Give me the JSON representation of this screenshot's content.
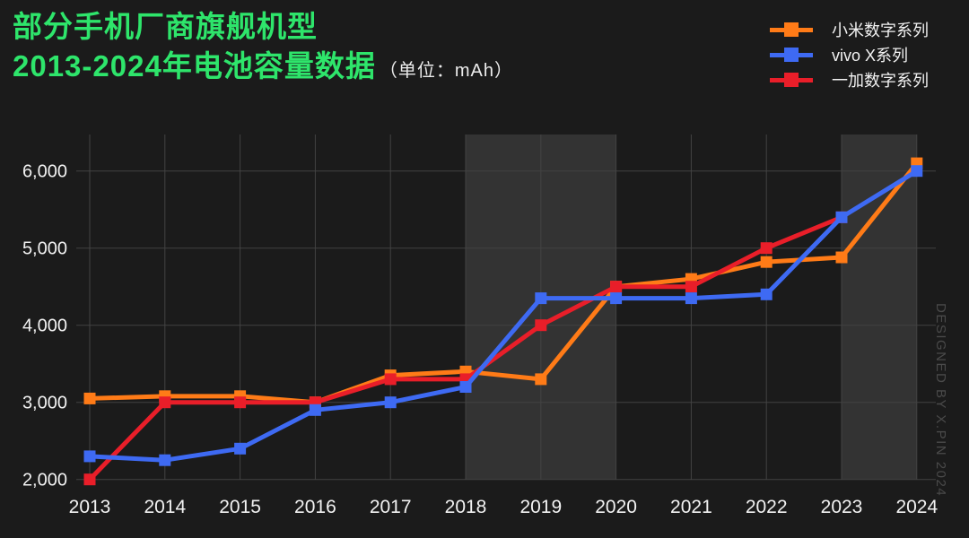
{
  "title": {
    "line1": "部分手机厂商旗舰机型",
    "line2": "2013-2024年电池容量数据",
    "unit_note": "（单位：mAh）"
  },
  "watermark": "DESIGNED BY X.PIN 2024",
  "colors": {
    "background": "#1b1b1b",
    "title_green": "#2ee56b",
    "subtitle_text": "#ececec",
    "axis_text": "#f2f2f2",
    "gridline": "#434343",
    "highlight_band": "#333333",
    "watermark_text": "#4a4a4a"
  },
  "chart_data": {
    "type": "line",
    "title": "部分手机厂商旗舰机型 2013-2024年电池容量数据",
    "unit": "mAh",
    "x": [
      2013,
      2014,
      2015,
      2016,
      2017,
      2018,
      2019,
      2020,
      2021,
      2022,
      2023,
      2024
    ],
    "xtick_labels": [
      "2013",
      "2014",
      "2015",
      "2016",
      "2017",
      "2018",
      "2019",
      "2020",
      "2021",
      "2022",
      "2023",
      "2024"
    ],
    "series": [
      {
        "name": "小米数字系列",
        "color": "#ff7b17",
        "values": [
          3050,
          3080,
          3080,
          3000,
          3350,
          3400,
          3300,
          4500,
          4600,
          4820,
          4880,
          6100
        ]
      },
      {
        "name": "vivo X系列",
        "color": "#3e6af3",
        "values": [
          2300,
          2250,
          2400,
          2900,
          3000,
          3200,
          4350,
          4350,
          4350,
          4400,
          5400,
          6000
        ]
      },
      {
        "name": "一加数字系列",
        "color": "#e91e29",
        "values": [
          2000,
          3000,
          3000,
          3000,
          3300,
          3300,
          4000,
          4500,
          4500,
          5000,
          5400,
          null
        ]
      }
    ],
    "ylim": [
      2000,
      6000
    ],
    "yticks": [
      2000,
      3000,
      4000,
      5000,
      6000
    ],
    "ytick_labels": [
      "2,000",
      "3,000",
      "4,000",
      "5,000",
      "6,000"
    ],
    "grid": true,
    "legend_position": "top-right",
    "highlight_bands": [
      [
        2018,
        2020
      ],
      [
        2023,
        2024
      ]
    ],
    "draw_order": [
      0,
      2,
      1
    ]
  }
}
